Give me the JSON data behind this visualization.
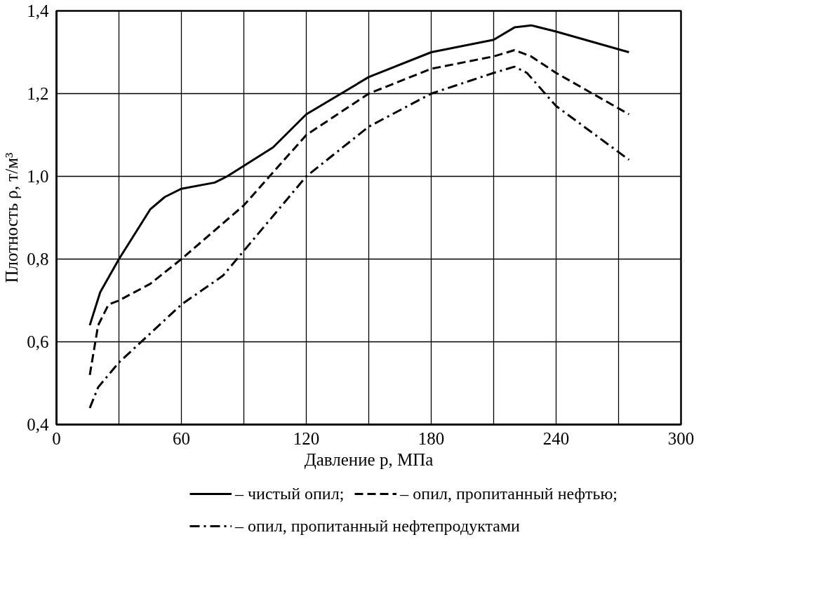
{
  "chart_data": {
    "type": "line",
    "xlabel": "Давление p, МПа",
    "ylabel": "Плотность ρ, т/м³",
    "xlim": [
      0,
      300
    ],
    "ylim": [
      0.4,
      1.4
    ],
    "xticks": [
      0,
      {
        "value": 30,
        "label": null
      },
      60,
      {
        "value": 90,
        "label": null
      },
      120,
      {
        "value": 150,
        "label": null
      },
      180,
      {
        "value": 210,
        "label": null
      },
      240,
      {
        "value": 270,
        "label": null
      },
      300
    ],
    "yticks": [
      {
        "value": 0.4,
        "label": "0,4"
      },
      {
        "value": 0.6,
        "label": "0,6"
      },
      {
        "value": 0.8,
        "label": "0,8"
      },
      {
        "value": 1.0,
        "label": "1,0"
      },
      {
        "value": 1.2,
        "label": "1,2"
      },
      {
        "value": 1.4,
        "label": "1,4"
      }
    ],
    "grid": true,
    "legend": "bottom",
    "marker": "none",
    "series": [
      {
        "name": "– чистый опил;",
        "color": "#000000",
        "line_style": "solid",
        "x": [
          16,
          21,
          30,
          45,
          52,
          60,
          76,
          82,
          104,
          120,
          150,
          180,
          210,
          220,
          228,
          240,
          275
        ],
        "values": [
          0.64,
          0.72,
          0.8,
          0.92,
          0.95,
          0.97,
          0.985,
          1.0,
          1.07,
          1.15,
          1.24,
          1.3,
          1.33,
          1.36,
          1.365,
          1.35,
          1.3
        ]
      },
      {
        "name": "– опил, пропитанный нефтью;",
        "color": "#000000",
        "line_style": "dashed",
        "x": [
          16,
          20,
          25,
          30,
          45,
          60,
          90,
          120,
          150,
          180,
          210,
          220,
          228,
          240,
          275
        ],
        "values": [
          0.52,
          0.64,
          0.69,
          0.7,
          0.74,
          0.8,
          0.93,
          1.1,
          1.2,
          1.26,
          1.29,
          1.305,
          1.29,
          1.25,
          1.15
        ]
      },
      {
        "name": "– опил, пропитанный нефтепродуктами",
        "color": "#000000",
        "line_style": "dashdot",
        "x": [
          16,
          20,
          30,
          45,
          60,
          80,
          90,
          120,
          150,
          180,
          210,
          220,
          226,
          240,
          275
        ],
        "values": [
          0.44,
          0.49,
          0.55,
          0.62,
          0.69,
          0.76,
          0.82,
          1.0,
          1.12,
          1.2,
          1.25,
          1.265,
          1.25,
          1.17,
          1.04
        ]
      }
    ]
  }
}
